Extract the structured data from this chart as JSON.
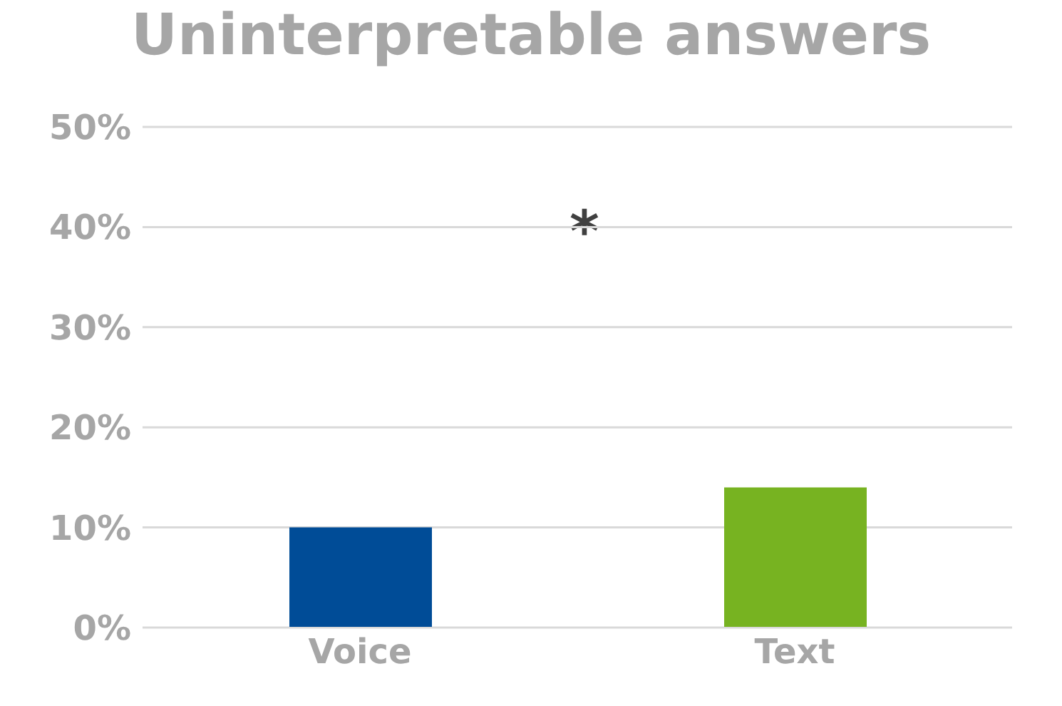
{
  "chart_data": {
    "type": "bar",
    "title": "Uninterpretable answers",
    "categories": [
      "Voice",
      "Text"
    ],
    "values": [
      10,
      14
    ],
    "colors": [
      "#004c97",
      "#77b321"
    ],
    "ylim": [
      0,
      50
    ],
    "yticks": [
      {
        "value": 0,
        "label": "0%"
      },
      {
        "value": 10,
        "label": "10%"
      },
      {
        "value": 20,
        "label": "20%"
      },
      {
        "value": 30,
        "label": "30%"
      },
      {
        "value": 40,
        "label": "40%"
      },
      {
        "value": 50,
        "label": "50%"
      }
    ],
    "grid": "y",
    "annotations": [
      "*"
    ]
  }
}
